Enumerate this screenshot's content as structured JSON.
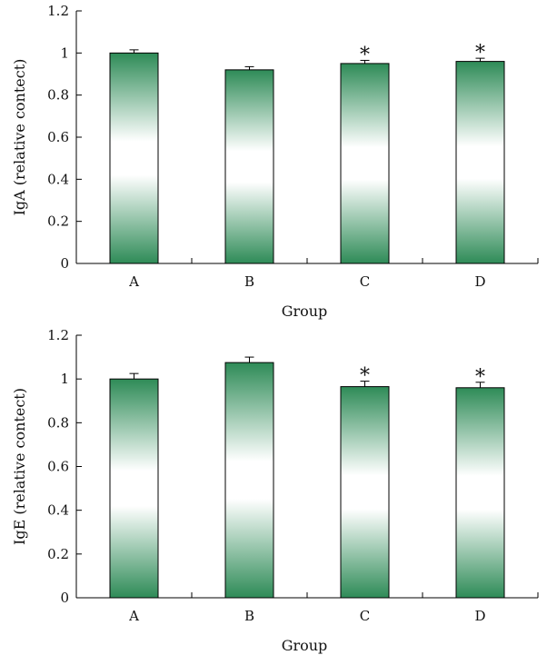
{
  "chart_data": [
    {
      "type": "bar",
      "categories": [
        "A",
        "B",
        "C",
        "D"
      ],
      "values": [
        1.0,
        0.92,
        0.95,
        0.96
      ],
      "errors": [
        0.015,
        0.015,
        0.015,
        0.015
      ],
      "significance": [
        "",
        "",
        "*",
        "*"
      ],
      "xlabel": "Group",
      "ylabel": "IgA (relative contect)",
      "ylim": [
        0,
        1.2
      ],
      "yticks": [
        "0",
        "0.2",
        "0.4",
        "0.6",
        "0.8",
        "1",
        "1.2"
      ],
      "grid": false,
      "bar_color": "#2e8b57"
    },
    {
      "type": "bar",
      "categories": [
        "A",
        "B",
        "C",
        "D"
      ],
      "values": [
        1.0,
        1.075,
        0.965,
        0.96
      ],
      "errors": [
        0.025,
        0.025,
        0.025,
        0.025
      ],
      "significance": [
        "",
        "",
        "*",
        "*"
      ],
      "xlabel": "Group",
      "ylabel": "IgE (relative contect)",
      "ylim": [
        0,
        1.2
      ],
      "yticks": [
        "0",
        "0.2",
        "0.4",
        "0.6",
        "0.8",
        "1",
        "1.2"
      ],
      "grid": false,
      "bar_color": "#2e8b57"
    }
  ]
}
